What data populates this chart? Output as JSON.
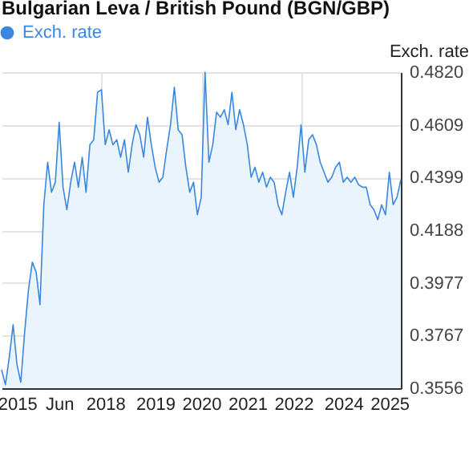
{
  "chart_data": {
    "type": "area",
    "title": "Bulgarian Leva / British Pound (BGN/GBP)",
    "ylabel": "Exch. rate",
    "categories": [
      null,
      null,
      null,
      null,
      "2015",
      null,
      null,
      null,
      null,
      null,
      null,
      null,
      null,
      null,
      null,
      "Jun",
      null,
      null,
      null,
      null,
      null,
      null,
      null,
      null,
      null,
      null,
      null,
      "2018",
      null,
      null,
      null,
      null,
      null,
      null,
      null,
      null,
      null,
      null,
      null,
      null,
      "2019",
      null,
      null,
      null,
      null,
      null,
      null,
      null,
      null,
      null,
      null,
      null,
      "2020",
      null,
      null,
      null,
      null,
      null,
      null,
      null,
      null,
      null,
      null,
      null,
      "2021",
      null,
      null,
      null,
      null,
      null,
      null,
      null,
      null,
      null,
      null,
      null,
      "2022",
      null,
      null,
      null,
      null,
      null,
      null,
      null,
      null,
      null,
      null,
      null,
      null,
      "2024",
      null,
      null,
      null,
      null,
      null,
      null,
      null,
      null,
      null,
      null,
      null,
      "2025",
      null,
      null,
      null
    ],
    "series": [
      {
        "name": "Exch. rate",
        "color": "#3b87e0",
        "values": [
          0.363,
          0.357,
          0.368,
          0.381,
          0.365,
          0.358,
          0.378,
          0.395,
          0.406,
          0.402,
          0.389,
          0.429,
          0.446,
          0.434,
          0.438,
          0.462,
          0.436,
          0.427,
          0.438,
          0.446,
          0.436,
          0.448,
          0.434,
          0.453,
          0.455,
          0.474,
          0.475,
          0.453,
          0.459,
          0.453,
          0.455,
          0.448,
          0.455,
          0.442,
          0.453,
          0.461,
          0.457,
          0.448,
          0.464,
          0.453,
          0.444,
          0.438,
          0.44,
          0.451,
          0.461,
          0.476,
          0.459,
          0.457,
          0.444,
          0.434,
          0.438,
          0.425,
          0.432,
          0.482,
          0.446,
          0.453,
          0.466,
          0.464,
          0.467,
          0.461,
          0.474,
          0.459,
          0.467,
          0.461,
          0.453,
          0.44,
          0.444,
          0.438,
          0.442,
          0.436,
          0.44,
          0.438,
          0.429,
          0.425,
          0.434,
          0.442,
          0.432,
          0.444,
          0.461,
          0.442,
          0.455,
          0.457,
          0.453,
          0.446,
          0.442,
          0.438,
          0.44,
          0.444,
          0.446,
          0.438,
          0.44,
          0.438,
          0.44,
          0.437,
          0.436,
          0.436,
          0.429,
          0.427,
          0.423,
          0.429,
          0.425,
          0.442,
          0.429,
          0.432,
          0.439
        ]
      }
    ],
    "ylim": [
      0.3556,
      0.482
    ],
    "yticks": [
      0.3556,
      0.3767,
      0.3977,
      0.4188,
      0.4399,
      0.4609,
      {
        "value": 0.482,
        "label": "0.4820"
      }
    ],
    "grid": true,
    "legend": "top left"
  }
}
